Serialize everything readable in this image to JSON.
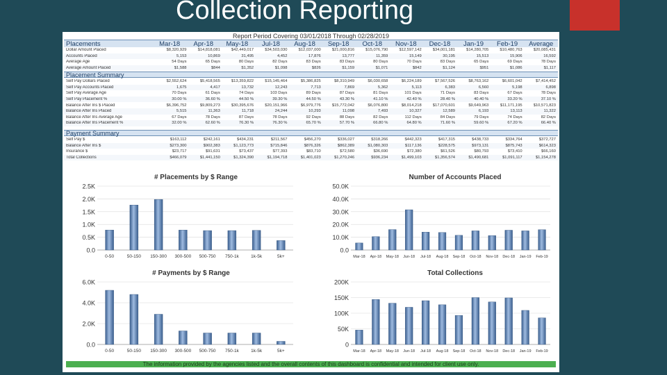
{
  "slide": {
    "title": "Collection Reporting",
    "accent": "#c8312b",
    "background": "#1f4a57"
  },
  "report": {
    "title": "Report Period Covering 03/01/2018 Through 02/28/2019",
    "footer": "The information provided by the agencies listed and the overall contents of this dashboard is confidential and intended for client use only.",
    "columns": [
      "Mar-18",
      "Apr-18",
      "May-18",
      "Jul-18",
      "Aug-18",
      "Sep-18",
      "Oct-18",
      "Nov-18",
      "Dec-18",
      "Jan-19",
      "Feb-19",
      "Average"
    ],
    "placements": {
      "header": "Placements",
      "rows": [
        {
          "label": "Dollar Amount Placed",
          "values": [
            "$8,320,929",
            "$14,818,081",
            "$42,449,017",
            "$34,503,030",
            "$12,037,000",
            "$21,000,816",
            "$15,076,790",
            "$12,597,142",
            "$34,001,181",
            "$14,280,705",
            "$10,480,763",
            "$20,085,431"
          ]
        },
        {
          "label": "Accounts Placed",
          "values": [
            "5,153",
            "10,869",
            "31,495",
            "4,452",
            "17,876",
            "13,777",
            "11,359",
            "15,149",
            "30,195",
            "15,513",
            "15,906",
            "16,592"
          ]
        },
        {
          "label": "Average Age",
          "values": [
            "54 Days",
            "65 Days",
            "80 Days",
            "82 Days",
            "83 Days",
            "83 Days",
            "80 Days",
            "70 Days",
            "83 Days",
            "65 Days",
            "69 Days",
            "78 Days"
          ]
        },
        {
          "label": "Average Amount Placed",
          "values": [
            "$1,588",
            "$844",
            "$1,352",
            "$1,098",
            "$826",
            "$1,159",
            "$1,071",
            "$842",
            "$1,124",
            "$951",
            "$1,086",
            "$1,117"
          ]
        }
      ]
    },
    "placement_summary": {
      "header": "Placement Summary",
      "rows": [
        {
          "label": "Self Pay Dollars Placed",
          "values": [
            "$2,552,624",
            "$5,418,565",
            "$13,359,822",
            "$15,145,464",
            "$5,386,825",
            "$8,310,949",
            "$6,030,658",
            "$6,224,189",
            "$7,567,526",
            "$8,763,162",
            "$6,601,042",
            "$7,414,452"
          ]
        },
        {
          "label": "Self Pay Accounts Placed",
          "values": [
            "1,675",
            "4,417",
            "13,732",
            "12,243",
            "7,713",
            "7,869",
            "5,362",
            "5,113",
            "6,383",
            "6,560",
            "5,198",
            "6,898"
          ]
        },
        {
          "label": "Self Pay Average Age",
          "values": [
            "70 Days",
            "61 Days",
            "74 Days",
            "103 Days",
            "89 Days",
            "87 Days",
            "81 Days",
            "101 Days",
            "71 Days",
            "83 Days",
            "67 Days",
            "78 Days"
          ]
        },
        {
          "label": "Self Pay Placement %",
          "values": "30.00 %|36.60 %|44.50 %|39.30 %|44.50 %|43.30 %|41.10 %|42.40 %|28.40 %|40.40 %|33.20 %|37.10 %"
        },
        {
          "label": "Balance After Ins $ Placed",
          "values": [
            "$6,396,752",
            "$9,809,273",
            "$30,395,676",
            "$20,151,966",
            "$6,979,776",
            "$15,772,042",
            "$6,076,800",
            "$8,014,218",
            "$17,070,601",
            "$9,649,963",
            "$11,171,195",
            "$10,571,823"
          ]
        },
        {
          "label": "Balance After Ins Placed",
          "values": [
            "5,515",
            "11,363",
            "11,718",
            "24,244",
            "10,293",
            "11,098",
            "7,493",
            "10,327",
            "12,589",
            "6,193",
            "13,113",
            "11,322"
          ]
        },
        {
          "label": "Balance After Ins Average Age",
          "values": [
            "67 Days",
            "78 Days",
            "87 Days",
            "78 Days",
            "92 Days",
            "88 Days",
            "82 Days",
            "112 Days",
            "84 Days",
            "79 Days",
            "74 Days",
            "82 Days"
          ]
        },
        {
          "label": "Balance After Ins Placement %",
          "values": "32.00 %|62.60 %|76.30 %|76.30 %|65.70 %|57.70 %|66.80 %|64.80 %|71.60 %|59.60 %|67.20 %|66.40 %"
        }
      ]
    },
    "payment_summary": {
      "header": "Payment Summary",
      "rows": [
        {
          "label": "Self Pay $",
          "values": [
            "$163,112",
            "$242,161",
            "$434,231",
            "$211,567",
            "$456,270",
            "$336,027",
            "$318,266",
            "$442,323",
            "$417,315",
            "$438,733",
            "$334,764",
            "$372,727"
          ]
        },
        {
          "label": "Balance After Ins $",
          "values": [
            "$273,300",
            "$902,383",
            "$1,123,773",
            "$715,846",
            "$876,326",
            "$862,389",
            "$1,080,303",
            "$117,136",
            "$228,575",
            "$973,131",
            "$875,743",
            "$614,323"
          ]
        },
        {
          "label": "Insurance $",
          "values": [
            "$23,717",
            "$91,631",
            "$73,437",
            "$77,393",
            "$83,710",
            "$72,580",
            "$36,690",
            "$72,380",
            "$61,526",
            "$80,793",
            "$73,410",
            "$66,160"
          ]
        },
        {
          "label": "Total Collections",
          "values": [
            "$466,079",
            "$1,441,150",
            "$1,324,390",
            "$1,194,718",
            "$1,401,023",
            "$1,270,246",
            "$936,234",
            "$1,499,103",
            "$1,356,574",
            "$1,490,681",
            "$1,091,117",
            "$1,154,278"
          ]
        }
      ]
    }
  },
  "charts": {
    "placements_range": {
      "title": "# Placements by $ Range",
      "type": "bar",
      "categories": [
        "0-50",
        "50-150",
        "150-300",
        "300-500",
        "500-750",
        "750-1k",
        "1k-5k",
        "5k+"
      ],
      "values": [
        780,
        1760,
        1980,
        780,
        760,
        760,
        770,
        370
      ],
      "ylim": [
        0,
        2500
      ],
      "yticks": [
        "0.0",
        "0.5K",
        "1.0K",
        "1.5K",
        "2.0K",
        "2.5K"
      ]
    },
    "accounts_placed": {
      "title": "Number of Accounts Placed",
      "type": "bar",
      "categories": [
        "Mar-18",
        "Apr-18",
        "May-18",
        "Jun-18",
        "Jul-18",
        "Aug-18",
        "Sep-18",
        "Oct-18",
        "Nov-18",
        "Dec-18",
        "Jan-19",
        "Feb-19"
      ],
      "values": [
        5500,
        10500,
        16000,
        31500,
        14000,
        13700,
        11500,
        15000,
        11300,
        15500,
        15000,
        15900
      ],
      "ylim": [
        0,
        50000
      ],
      "yticks": [
        "0.0",
        "10.0K",
        "20.0K",
        "30.0K",
        "40.0K",
        "50.0K"
      ]
    },
    "payments_range": {
      "title": "# Payments by $ Range",
      "type": "bar",
      "categories": [
        "0-50",
        "50-150",
        "150-300",
        "300-500",
        "500-750",
        "750-1k",
        "1k-5k",
        "5k+"
      ],
      "values": [
        5200,
        4800,
        2900,
        1300,
        1100,
        1100,
        1100,
        300
      ],
      "ylim": [
        0,
        6000
      ],
      "yticks": [
        "0.0",
        "2.0K",
        "4.0K",
        "6.0K"
      ]
    },
    "total_collections": {
      "title": "Total Collections",
      "type": "bar",
      "categories": [
        "Mar-18",
        "Apr-18",
        "May-18",
        "Jun-18",
        "Jul-18",
        "Aug-18",
        "Sep-18",
        "Oct-18",
        "Nov-18",
        "Dec-18",
        "Jan-19",
        "Feb-19"
      ],
      "values": [
        46000,
        144000,
        132000,
        119000,
        140000,
        127000,
        93000,
        150000,
        136000,
        149000,
        109000,
        85000
      ],
      "ylim": [
        0,
        200000
      ],
      "yticks": [
        "0",
        "50K",
        "100K",
        "150K",
        "200K"
      ]
    }
  }
}
